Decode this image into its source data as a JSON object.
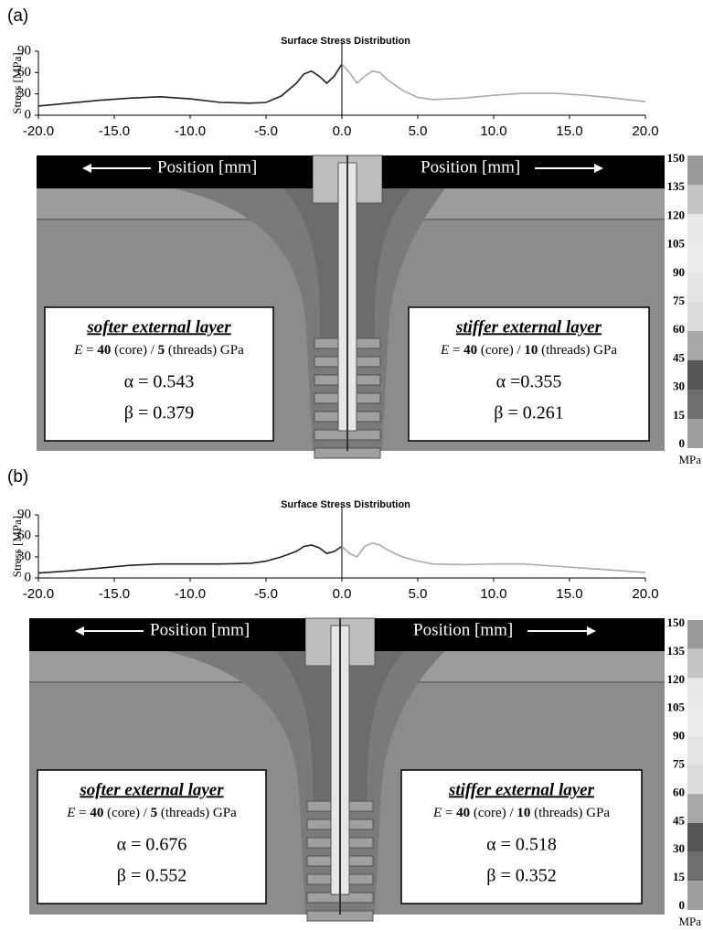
{
  "chart_data": [
    {
      "type": "line",
      "panel_label": "(a)",
      "title": "Surface Stress Distribution",
      "ylabel": "Stress [MPa]",
      "xlim": [
        -20,
        20
      ],
      "ylim": [
        0,
        90
      ],
      "xticks": [
        {
          "value": -20,
          "label": "-20.0"
        },
        {
          "value": -15,
          "label": "-15.0"
        },
        {
          "value": -10,
          "label": "-10.0"
        },
        {
          "value": -5,
          "label": "-5.0"
        },
        {
          "value": 0,
          "label": "0.0"
        },
        {
          "value": 5,
          "label": "5.0"
        },
        {
          "value": 10,
          "label": "10.0"
        },
        {
          "value": 15,
          "label": "15.0"
        },
        {
          "value": 20,
          "label": "20.0"
        }
      ],
      "yticks": [
        0,
        30,
        60,
        90
      ],
      "series": [
        {
          "color": "#222222",
          "x": [
            -20,
            -18,
            -16,
            -14,
            -12,
            -10,
            -8,
            -6,
            -5,
            -4,
            -3,
            -2.5,
            -2,
            -1.5,
            -1,
            -0.5,
            0
          ],
          "values": [
            13,
            17,
            21,
            24,
            26,
            23,
            18,
            17,
            18,
            27,
            45,
            58,
            62,
            55,
            45,
            55,
            72
          ]
        },
        {
          "color": "#aaaaaa",
          "x": [
            0,
            0.5,
            1,
            1.5,
            2,
            2.5,
            3,
            4,
            5,
            6,
            8,
            10,
            12,
            14,
            16,
            18,
            20
          ],
          "values": [
            72,
            60,
            45,
            55,
            62,
            60,
            50,
            35,
            25,
            22,
            24,
            28,
            31,
            31,
            28,
            24,
            19
          ]
        }
      ],
      "position_labels": [
        "Position [mm]",
        "Position [mm]"
      ],
      "boxes": [
        {
          "title": "softer external layer",
          "modulus": [
            "E",
            " = ",
            "40",
            " (core) / ",
            "5",
            " (threads) GPa"
          ],
          "alpha": "α = 0.543",
          "beta": "β = 0.379"
        },
        {
          "title": "stiffer external layer",
          "modulus": [
            "E",
            " = ",
            "40",
            " (core) / ",
            "10",
            " (threads) GPa"
          ],
          "alpha": "α =0.355",
          "beta": "β = 0.261"
        }
      ],
      "colorbar": {
        "ticks": [
          150,
          135,
          120,
          105,
          90,
          75,
          60,
          45,
          30,
          15,
          0
        ],
        "unit": "MPa",
        "colors": [
          "#9a9a9a",
          "#c4c4c4",
          "#e8e8e8",
          "#ececec",
          "#e4e4e4",
          "#dcdcdc",
          "#a8a8a8",
          "#555555",
          "#6e6e6e",
          "#9e9e9e"
        ]
      }
    },
    {
      "type": "line",
      "panel_label": "(b)",
      "title": "Surface Stress Distribution",
      "ylabel": "Stress [MPa]",
      "xlim": [
        -20,
        20
      ],
      "ylim": [
        0,
        90
      ],
      "xticks": [
        {
          "value": -20,
          "label": "-20.0"
        },
        {
          "value": -15,
          "label": "-15.0"
        },
        {
          "value": -10,
          "label": "-10.0"
        },
        {
          "value": -5,
          "label": "-5.0"
        },
        {
          "value": 0,
          "label": "0.0"
        },
        {
          "value": 5,
          "label": "5.0"
        },
        {
          "value": 10,
          "label": "10.0"
        },
        {
          "value": 15,
          "label": "15.0"
        },
        {
          "value": 20,
          "label": "20.0"
        }
      ],
      "yticks": [
        0,
        30,
        60,
        90
      ],
      "series": [
        {
          "color": "#222222",
          "x": [
            -20,
            -18,
            -16,
            -14,
            -12,
            -10,
            -8,
            -6,
            -5,
            -4,
            -3,
            -2.5,
            -2,
            -1.5,
            -1,
            -0.5,
            0
          ],
          "values": [
            7,
            10,
            14,
            18,
            20,
            20,
            20,
            21,
            24,
            30,
            38,
            45,
            47,
            43,
            35,
            38,
            45
          ]
        },
        {
          "color": "#aaaaaa",
          "x": [
            0,
            0.5,
            1,
            1.5,
            2,
            2.5,
            3,
            4,
            5,
            6,
            8,
            10,
            12,
            14,
            16,
            18,
            20
          ],
          "values": [
            45,
            35,
            30,
            45,
            50,
            47,
            40,
            30,
            24,
            20,
            19,
            20,
            20,
            17,
            14,
            11,
            8
          ]
        }
      ],
      "position_labels": [
        "Position [mm]",
        "Position [mm]"
      ],
      "boxes": [
        {
          "title": "softer external layer",
          "modulus": [
            "E",
            " = ",
            "40",
            " (core) / ",
            "5",
            " (threads) GPa"
          ],
          "alpha": "α = 0.676",
          "beta": "β = 0.552"
        },
        {
          "title": "stiffer external layer",
          "modulus": [
            "E",
            " = ",
            "40",
            " (core) / ",
            "10",
            " (threads) GPa"
          ],
          "alpha": "α = 0.518",
          "beta": "β = 0.352"
        }
      ],
      "colorbar": {
        "ticks": [
          150,
          135,
          120,
          105,
          90,
          75,
          60,
          45,
          30,
          15,
          0
        ],
        "unit": "MPa",
        "colors": [
          "#9a9a9a",
          "#c4c4c4",
          "#e8e8e8",
          "#ececec",
          "#e4e4e4",
          "#dcdcdc",
          "#a8a8a8",
          "#555555",
          "#6e6e6e",
          "#9e9e9e"
        ]
      }
    }
  ]
}
